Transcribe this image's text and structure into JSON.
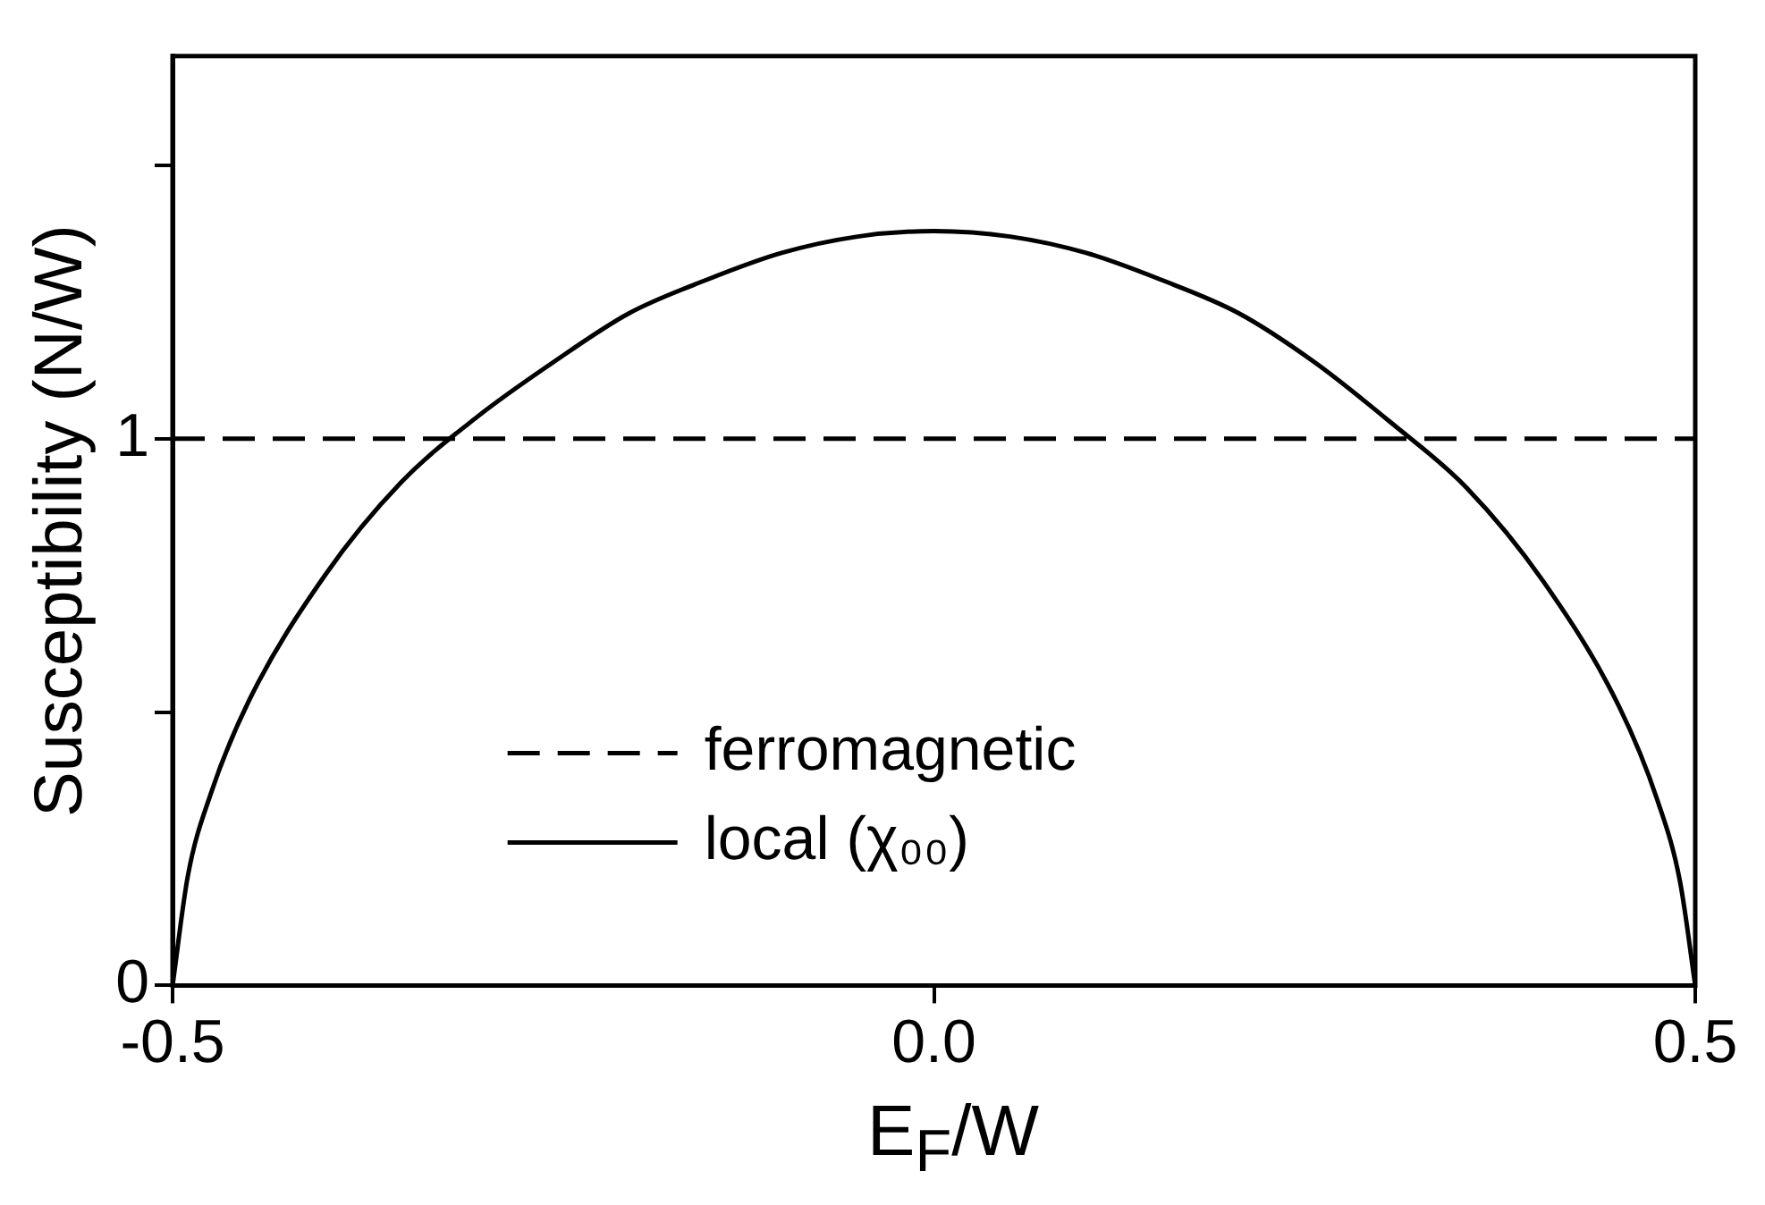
{
  "chart_data": {
    "type": "line",
    "xlabel": "E$_{F}$/W",
    "ylabel": "Susceptibility (N/W)",
    "xlim": [
      -0.5,
      0.5
    ],
    "xticks": [
      -0.5,
      {
        "value": 0,
        "label": "0.0"
      },
      0.5
    ],
    "ylim": [
      0,
      1.7
    ],
    "yticks": [
      0,
      {
        "value": 0.5,
        "label": null
      },
      1,
      {
        "value": 1.5,
        "label": null
      }
    ],
    "grid": false,
    "legend": "bottom",
    "marker": "none",
    "series": [
      {
        "name": "ferromagnetic",
        "color": "#000000",
        "line_style": "dashed",
        "x": [
          -0.5,
          0.5
        ],
        "values": [
          1,
          1
        ]
      },
      {
        "name": "local (χ₀₀)",
        "color": "#000000",
        "line_style": "solid",
        "x": [
          -0.5,
          -0.49,
          -0.475,
          -0.45,
          -0.4,
          -0.35,
          -0.3,
          -0.25,
          -0.2,
          -0.15,
          -0.1,
          -0.05,
          0,
          0.05,
          0.1,
          0.15,
          0.2,
          0.25,
          0.3,
          0.35,
          0.4,
          0.45,
          0.475,
          0.49,
          0.5
        ],
        "values": [
          0,
          0.2,
          0.35,
          0.52,
          0.75,
          0.92,
          1.04,
          1.14,
          1.23,
          1.29,
          1.34,
          1.37,
          1.38,
          1.37,
          1.34,
          1.29,
          1.23,
          1.14,
          1.03,
          0.91,
          0.74,
          0.51,
          0.34,
          0.19,
          0
        ]
      }
    ]
  }
}
